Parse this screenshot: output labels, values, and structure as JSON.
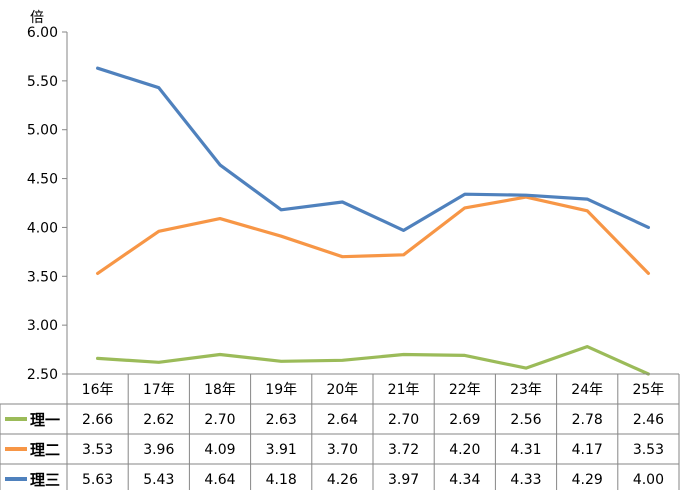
{
  "chart_data": {
    "type": "line",
    "unit_label": "倍",
    "categories": [
      "16年",
      "17年",
      "18年",
      "19年",
      "20年",
      "21年",
      "22年",
      "23年",
      "24年",
      "25年"
    ],
    "ylim": [
      2.5,
      6.0
    ],
    "y_ticks": [
      "2.50",
      "3.00",
      "3.50",
      "4.00",
      "4.50",
      "5.00",
      "5.50",
      "6.00"
    ],
    "grid": false,
    "legend": "data-table-below",
    "series": [
      {
        "name": "理一",
        "color": "#9BBB59",
        "values": [
          2.66,
          2.62,
          2.7,
          2.63,
          2.64,
          2.7,
          2.69,
          2.56,
          2.78,
          2.46
        ],
        "labels": [
          "2.66",
          "2.62",
          "2.70",
          "2.63",
          "2.64",
          "2.70",
          "2.69",
          "2.56",
          "2.78",
          "2.46"
        ]
      },
      {
        "name": "理二",
        "color": "#F79646",
        "values": [
          3.53,
          3.96,
          4.09,
          3.91,
          3.7,
          3.72,
          4.2,
          4.31,
          4.17,
          3.53
        ],
        "labels": [
          "3.53",
          "3.96",
          "4.09",
          "3.91",
          "3.70",
          "3.72",
          "4.20",
          "4.31",
          "4.17",
          "3.53"
        ]
      },
      {
        "name": "理三",
        "color": "#4F81BD",
        "values": [
          5.63,
          5.43,
          4.64,
          4.18,
          4.26,
          3.97,
          4.34,
          4.33,
          4.29,
          4.0
        ],
        "labels": [
          "5.63",
          "5.43",
          "4.64",
          "4.18",
          "4.26",
          "3.97",
          "4.34",
          "4.33",
          "4.29",
          "4.00"
        ]
      }
    ]
  }
}
